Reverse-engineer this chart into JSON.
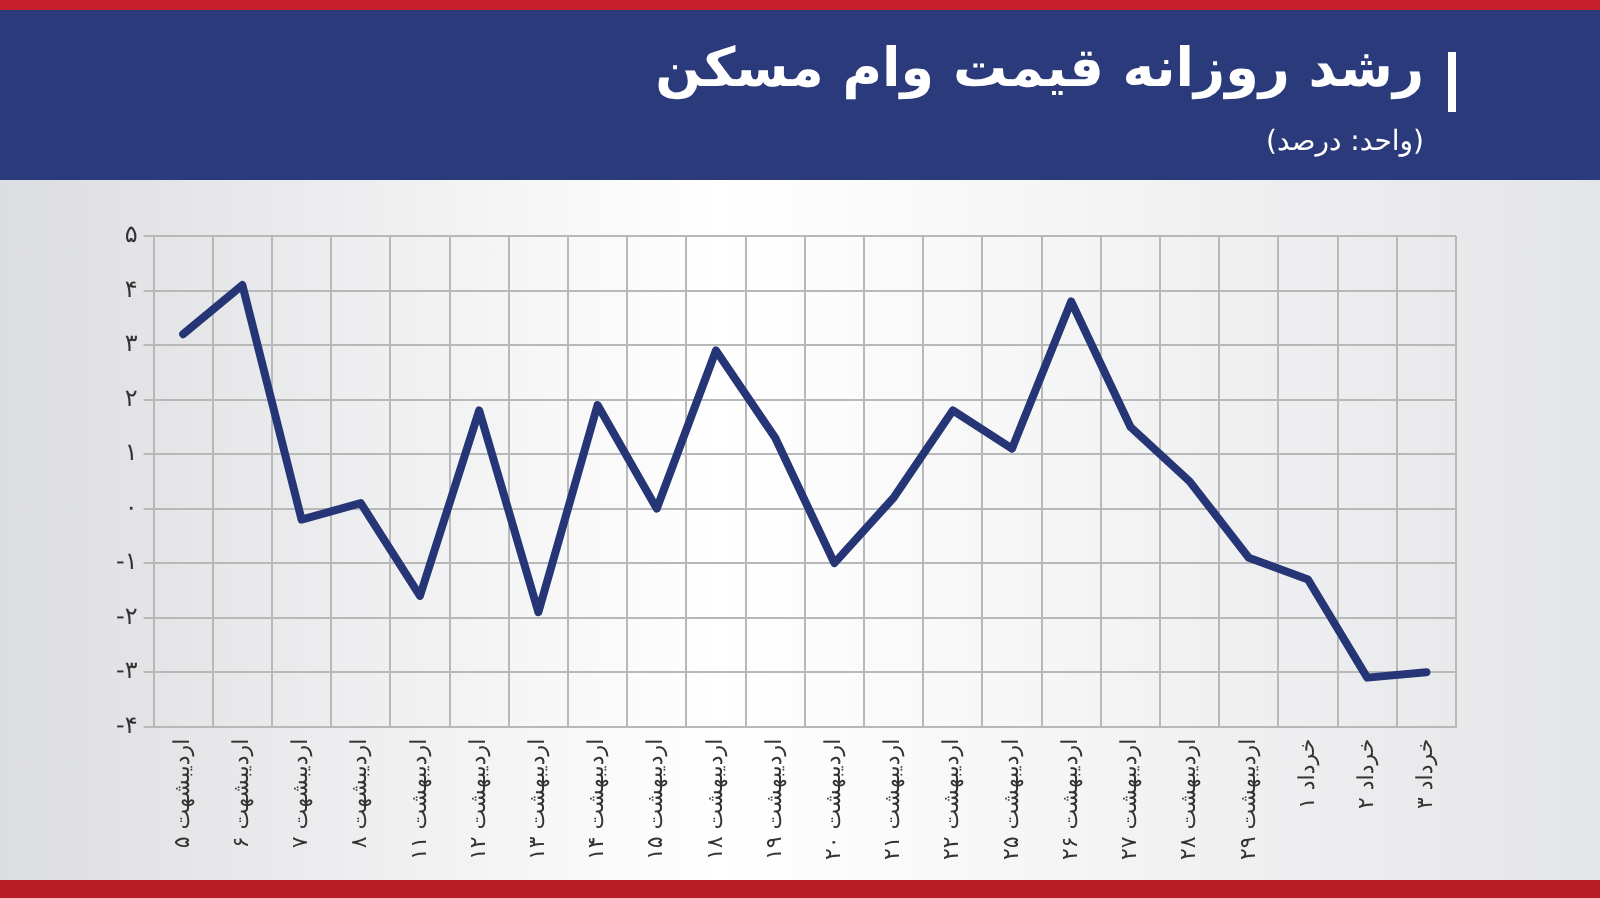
{
  "chart_data": {
    "type": "line",
    "title": "رشد روزانه قیمت وام مسکن",
    "subtitle": "(واحد: درصد)",
    "categories": [
      "۵ اردیبشهت",
      "۶ اردیبشهت",
      "۷ اردیبشهت",
      "۸ اردیبشهت",
      "۱۱ اردیبهشت",
      "۱۲ اردیبهشت",
      "۱۳ اردیبهشت",
      "۱۴ اردیبهشت",
      "۱۵ اردیبهشت",
      "۱۸ اردیبهشت",
      "۱۹ اردیبهشت",
      "۲۰ اردیبهشت",
      "۲۱ اردیبهشت",
      "۲۲ اردیبهشت",
      "۲۵ اردیبهشت",
      "۲۶ اردیبهشت",
      "۲۷ اردیبهشت",
      "۲۸ اردیبهشت",
      "۲۹ اردیبهشت",
      "۱ خرداد",
      "۲ خرداد",
      "۳ خرداد"
    ],
    "series": [
      {
        "color": "#253575",
        "values": [
          3.2,
          4.1,
          -0.2,
          0.1,
          -1.6,
          1.8,
          -1.9,
          1.9,
          0,
          2.9,
          1.3,
          -1,
          0.2,
          1.8,
          1.1,
          3.8,
          1.5,
          0.5,
          -0.9,
          -1.3,
          -3.1,
          -3
        ]
      }
    ],
    "ylim": [
      -4,
      5
    ],
    "yticks": [
      {
        "value": -4,
        "label": "-۴"
      },
      {
        "value": -3,
        "label": "-۳"
      },
      {
        "value": -2,
        "label": "-۲"
      },
      {
        "value": -1,
        "label": "-۱"
      },
      {
        "value": 0,
        "label": "۰"
      },
      {
        "value": 1,
        "label": "۱"
      },
      {
        "value": 2,
        "label": "۲"
      },
      {
        "value": 3,
        "label": "۳"
      },
      {
        "value": 4,
        "label": "۴"
      },
      {
        "value": 5,
        "label": "۵"
      }
    ],
    "grid": true,
    "legend": false,
    "marker": "none",
    "line_style": "solid"
  }
}
